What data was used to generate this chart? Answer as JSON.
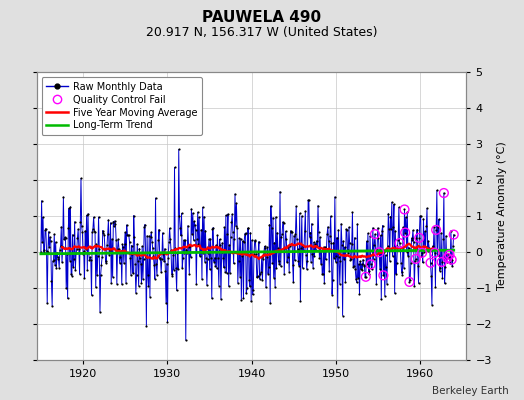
{
  "title": "PAUWELA 490",
  "subtitle": "20.917 N, 156.317 W (United States)",
  "ylabel": "Temperature Anomaly (°C)",
  "attribution": "Berkeley Earth",
  "xlim": [
    1914.5,
    1965.5
  ],
  "ylim": [
    -3,
    5
  ],
  "yticks": [
    -3,
    -2,
    -1,
    0,
    1,
    2,
    3,
    4,
    5
  ],
  "xticks": [
    1920,
    1930,
    1940,
    1950,
    1960
  ],
  "background_color": "#e0e0e0",
  "plot_background": "#ffffff",
  "raw_line_color": "#0000cc",
  "raw_dot_color": "#000000",
  "qc_fail_color": "#ff00ff",
  "moving_avg_color": "#ff0000",
  "trend_color": "#00bb00",
  "legend_labels": [
    "Raw Monthly Data",
    "Quality Control Fail",
    "Five Year Moving Average",
    "Long-Term Trend"
  ],
  "grid_color": "#c8c8c8",
  "seed_data": 42,
  "seed_qc": 7,
  "start_year": 1915,
  "end_year": 1964,
  "noise_scale": 0.65,
  "moving_avg_window": 60,
  "title_fontsize": 11,
  "subtitle_fontsize": 9,
  "legend_fontsize": 7,
  "tick_fontsize": 8,
  "ylabel_fontsize": 8
}
